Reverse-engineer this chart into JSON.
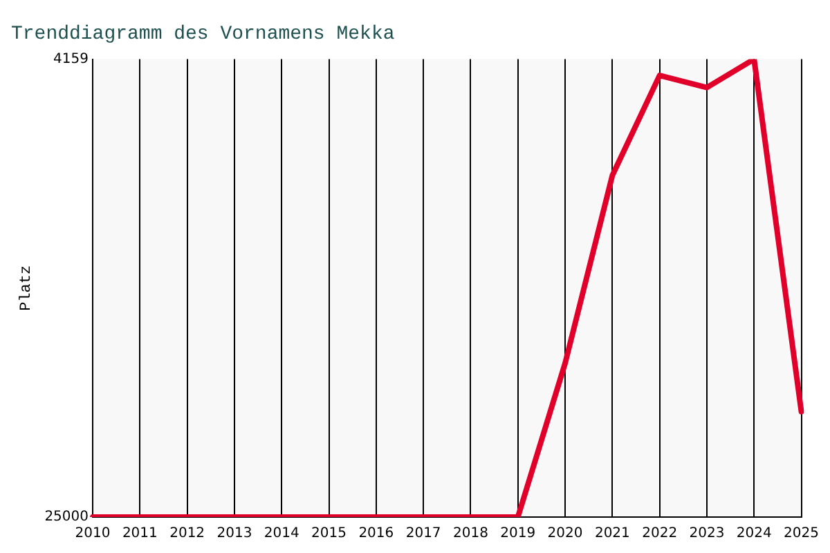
{
  "chart_data": {
    "type": "line",
    "title": "Trenddiagramm des Vornamens Mekka",
    "ylabel": "Platz",
    "categories": [
      "2010",
      "2011",
      "2012",
      "2013",
      "2014",
      "2015",
      "2016",
      "2017",
      "2018",
      "2019",
      "2020",
      "2021",
      "2022",
      "2023",
      "2024",
      "2025"
    ],
    "series": [
      {
        "color": "#e0002a",
        "values": [
          25000,
          25000,
          25000,
          25000,
          25000,
          25000,
          25000,
          25000,
          25000,
          25000,
          18000,
          9450,
          4900,
          5450,
          4159,
          20200
        ]
      }
    ],
    "ylim": [
      25000,
      4159
    ],
    "yticks": [
      4159,
      25000
    ],
    "grid": "x",
    "legend": false,
    "marker": "none",
    "line_style": "solid"
  }
}
